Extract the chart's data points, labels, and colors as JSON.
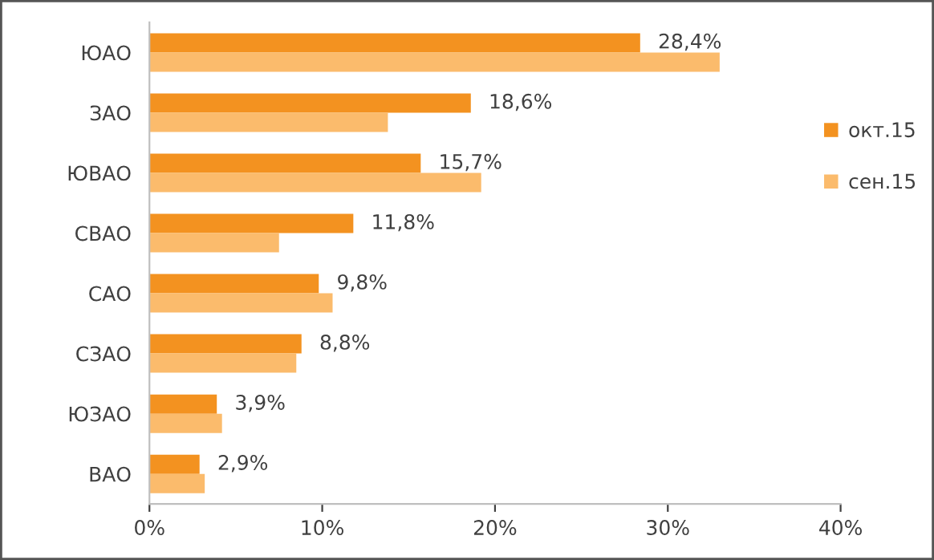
{
  "chart_data": {
    "type": "bar",
    "orientation": "horizontal",
    "categories": [
      "ЮАО",
      "ЗАО",
      "ЮВАО",
      "СВАО",
      "САО",
      "СЗАО",
      "ЮЗАО",
      "ВАО"
    ],
    "series": [
      {
        "name": "окт.15",
        "color": "#f39220",
        "values": [
          28.4,
          18.6,
          15.7,
          11.8,
          9.8,
          8.8,
          3.9,
          2.9
        ],
        "value_labels": [
          "28,4%",
          "18,6%",
          "15,7%",
          "11,8%",
          "9,8%",
          "8,8%",
          "3,9%",
          "2,9%"
        ]
      },
      {
        "name": "сен.15",
        "color": "#fbbb6c",
        "values": [
          33.0,
          13.8,
          19.2,
          7.5,
          10.6,
          8.5,
          4.2,
          3.2
        ]
      }
    ],
    "xlim": [
      0,
      40
    ],
    "xticks": [
      {
        "value": 0,
        "label": "0%"
      },
      {
        "value": 10,
        "label": "10%"
      },
      {
        "value": 20,
        "label": "20%"
      },
      {
        "value": 30,
        "label": "30%"
      },
      {
        "value": 40,
        "label": "40%"
      }
    ],
    "grid": false,
    "legend": "right"
  }
}
